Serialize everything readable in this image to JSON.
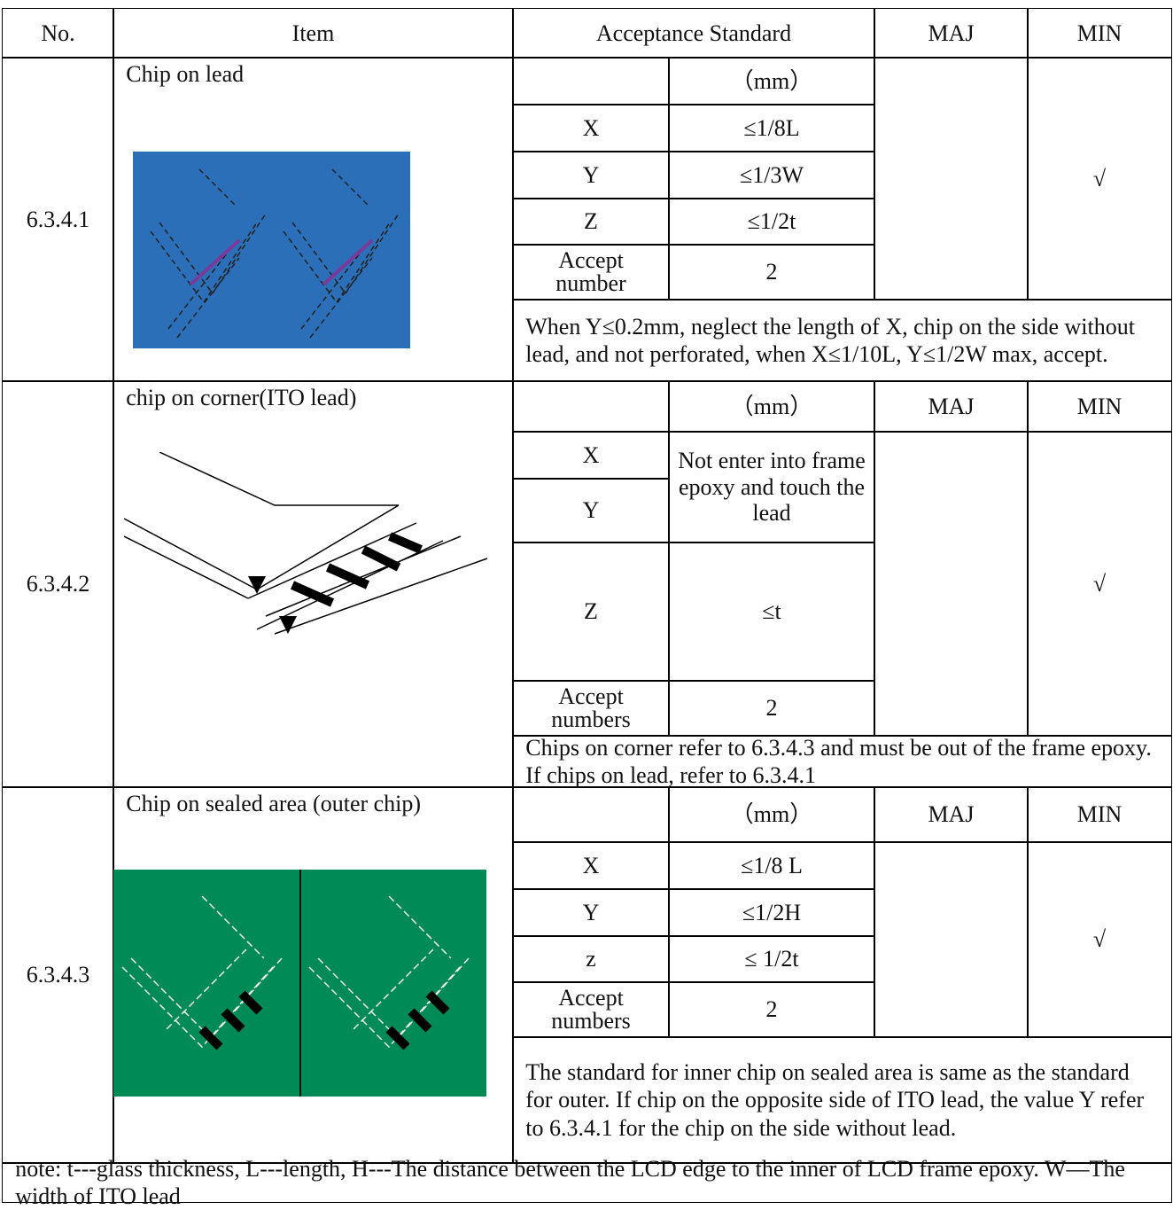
{
  "header": [
    "No.",
    "Item",
    "Acceptance Standard",
    "MAJ",
    "MIN"
  ],
  "sections": [
    {
      "no": "6.3.4.1",
      "item": "Chip on lead",
      "unit": "（mm）",
      "rows": [
        [
          "X",
          "≤1/8L"
        ],
        [
          "Y",
          "≤1/3W"
        ],
        [
          "Z",
          "≤1/2t"
        ]
      ],
      "accept": [
        "Accept number",
        "2"
      ],
      "min": "√",
      "note": "When Y≤0.2mm, neglect the length of X, chip on the side without lead, and not perforated, when X≤1/10L, Y≤1/2W max, accept."
    },
    {
      "no": "6.3.4.2",
      "item": "chip on corner(ITO lead)",
      "unit": "（mm）",
      "maj_header": "MAJ",
      "min_header": "MIN",
      "rows": [
        [
          "X"
        ],
        [
          "Y"
        ],
        [
          "Z",
          "≤t"
        ]
      ],
      "xy_value": "Not enter into frame epoxy and touch the lead",
      "accept": [
        "Accept numbers",
        "2"
      ],
      "min": "√",
      "note": "Chips on corner refer to 6.3.4.3 and must be out of the frame epoxy. If chips on lead, refer to 6.3.4.1"
    },
    {
      "no": "6.3.4.3",
      "item": "Chip on sealed area (outer chip)",
      "unit": "（mm）",
      "maj_header": "MAJ",
      "min_header": "MIN",
      "rows": [
        [
          "X",
          "≤1/8 L"
        ],
        [
          "Y",
          "≤1/2H"
        ],
        [
          "z",
          "≤ 1/2t"
        ]
      ],
      "accept": [
        "Accept numbers",
        "2"
      ],
      "min": "√",
      "note": "The standard for inner chip on sealed area is same as the standard for outer. If chip on the opposite side of ITO lead, the value Y refer to 6.3.4.1 for the chip on the side without lead."
    }
  ],
  "footer": {
    "note": "note: t---glass thickness, L---length, H---The distance between the LCD edge to the inner of LCD frame epoxy. W—The width of ITO lead"
  }
}
